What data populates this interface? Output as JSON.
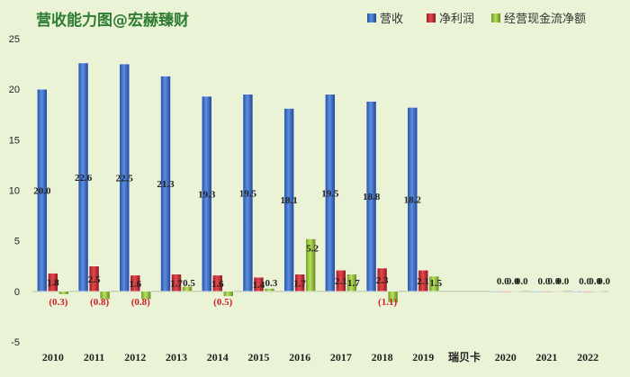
{
  "chart_data": {
    "type": "bar",
    "title": "营收能力图@宏赫臻财",
    "categories": [
      "2010",
      "2011",
      "2012",
      "2013",
      "2014",
      "2015",
      "2016",
      "2017",
      "2018",
      "2019",
      "瑞贝卡",
      "2020",
      "2021",
      "2022"
    ],
    "ylim": [
      -5,
      25
    ],
    "yticks": [
      -5,
      0,
      5,
      10,
      15,
      20,
      25
    ],
    "legend_position": "top-right",
    "grid": false,
    "series": [
      {
        "name": "营收",
        "color": "#3a6fc4",
        "values": [
          20.0,
          22.6,
          22.5,
          21.3,
          19.3,
          19.5,
          18.1,
          19.5,
          18.8,
          18.2,
          null,
          0.0,
          0.0,
          0.0
        ],
        "labels": [
          "20.0",
          "22.6",
          "22.5",
          "21.3",
          "19.3",
          "19.5",
          "18.1",
          "19.5",
          "18.8",
          "18.2",
          "",
          "0.0",
          "0.0",
          "0.0"
        ]
      },
      {
        "name": "净利润",
        "color": "#c0282d",
        "values": [
          1.8,
          2.5,
          1.6,
          1.7,
          1.6,
          1.4,
          1.7,
          2.1,
          2.3,
          2.1,
          null,
          0.0,
          0.0,
          0.0
        ],
        "labels": [
          "1.8",
          "2.5",
          "1.6",
          "1.7",
          "1.6",
          "1.4",
          "1.7",
          "2.1",
          "2.3",
          "2.1",
          "",
          "0.0",
          "0.0",
          "0.0"
        ]
      },
      {
        "name": "经营现金流净额",
        "color": "#9ac43b",
        "values": [
          -0.3,
          -0.8,
          -0.8,
          0.5,
          -0.5,
          0.3,
          5.2,
          1.7,
          -1.1,
          1.5,
          null,
          0.0,
          0.0,
          0.0
        ],
        "labels": [
          "(0.3)",
          "(0.8)",
          "(0.8)",
          "0.5",
          "(0.5)",
          "0.3",
          "5.2",
          "1.7",
          "(1.1)",
          "1.5",
          "",
          "0.0",
          "0.0",
          "0.0"
        ]
      }
    ]
  }
}
